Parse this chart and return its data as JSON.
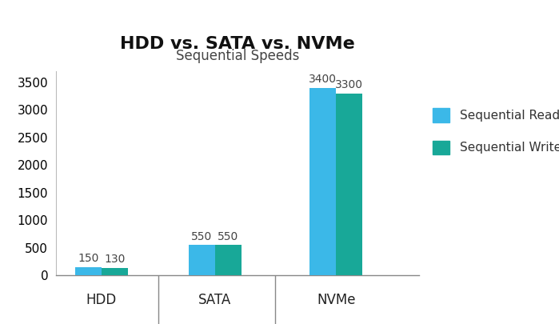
{
  "title": "HDD vs. SATA vs. NVMe",
  "subtitle": "Sequential Speeds",
  "categories": [
    "HDD",
    "SATA",
    "NVMe"
  ],
  "read_values": [
    150,
    550,
    3400
  ],
  "write_values": [
    130,
    550,
    3300
  ],
  "read_color": "#3BB8E8",
  "write_color": "#18A898",
  "ylim": [
    0,
    3700
  ],
  "yticks": [
    0,
    500,
    1000,
    1500,
    2000,
    2500,
    3000,
    3500
  ],
  "bar_width": 0.35,
  "title_fontsize": 16,
  "subtitle_fontsize": 12,
  "tick_fontsize": 11,
  "legend_fontsize": 11,
  "bg_color": "#ffffff",
  "value_label_fontsize": 10,
  "group_positions": [
    0.5,
    2.0,
    3.6
  ],
  "xlim": [
    -0.1,
    4.7
  ]
}
